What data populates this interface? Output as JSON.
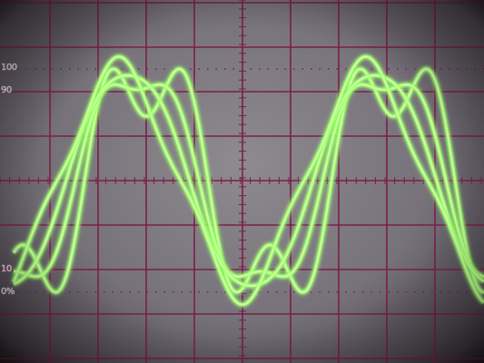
{
  "scale_labels": {
    "label_100": "100",
    "label_90": "90",
    "label_10": "10",
    "label_0": "0%"
  },
  "colors": {
    "grid": "#7a1f4a",
    "trace": "#c8ff9a",
    "trace_glow": "#7dff4a",
    "screen": "#8e8a8e"
  },
  "traces": [
    {
      "phase_shift": -0.35,
      "harmonic_amp": 0.42
    },
    {
      "phase_shift": -0.12,
      "harmonic_amp": 0.18
    },
    {
      "phase_shift": 0.12,
      "harmonic_amp": 0.05
    },
    {
      "phase_shift": 0.35,
      "harmonic_amp": -0.12
    }
  ]
}
